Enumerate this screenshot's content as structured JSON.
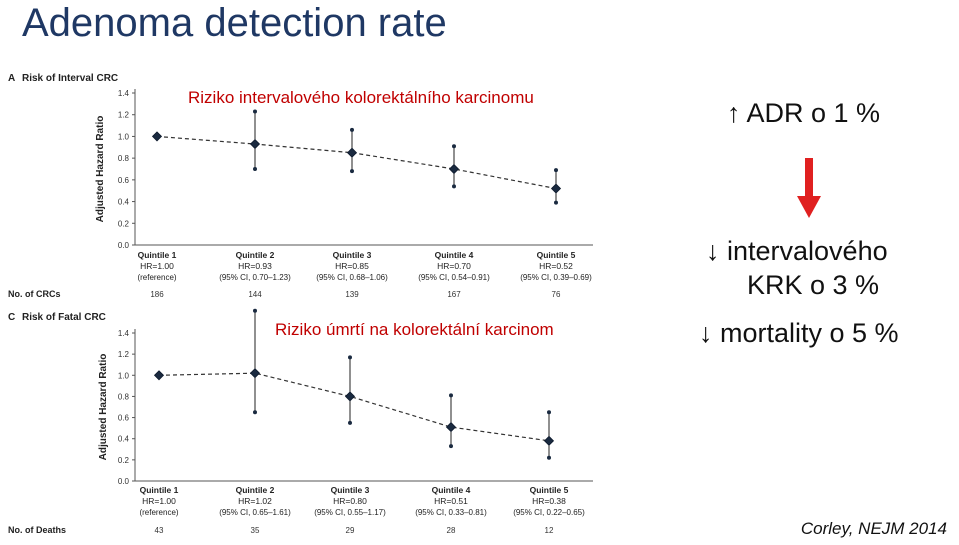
{
  "title": "Adenoma detection rate",
  "side": {
    "adr": "↑ ADR o 1 %",
    "krk_line1": "↓ intervalového",
    "krk_line2": "KRK o 3 %",
    "mortality": "↓ mortality o 5 %",
    "citation": "Corley, NEJM 2014",
    "arrow_color": "#e02020"
  },
  "chart_data": [
    {
      "type": "scatter",
      "panel": "A",
      "panel_title": "Risk of Interval CRC",
      "overlay_title": "Riziko intervalového kolorektálního karcinomu",
      "ylabel": "Adjusted Hazard Ratio",
      "ylim": [
        0,
        1.4
      ],
      "yticks": [
        "0.0",
        "0.2",
        "0.4",
        "0.6",
        "0.8",
        "1.0",
        "1.2",
        "1.4"
      ],
      "categories": [
        "Quintile 1",
        "Quintile 2",
        "Quintile 3",
        "Quintile 4",
        "Quintile 5"
      ],
      "hr_labels": [
        "HR=1.00",
        "HR=0.93",
        "HR=0.85",
        "HR=0.70",
        "HR=0.52"
      ],
      "ci_labels": [
        "(reference)",
        "(95% CI, 0.70–1.23)",
        "(95% CI, 0.68–1.06)",
        "(95% CI, 0.54–0.91)",
        "(95% CI, 0.39–0.69)"
      ],
      "values": [
        1.0,
        0.93,
        0.85,
        0.7,
        0.52
      ],
      "ci": [
        null,
        [
          0.7,
          1.23
        ],
        [
          0.68,
          1.06
        ],
        [
          0.54,
          0.91
        ],
        [
          0.39,
          0.69
        ]
      ],
      "count_label": "No. of CRCs",
      "counts": [
        "186",
        "144",
        "139",
        "167",
        "76"
      ]
    },
    {
      "type": "scatter",
      "panel": "C",
      "panel_title": "Risk of Fatal CRC",
      "overlay_title": "Riziko úmrtí na kolorektální karcinom",
      "ylabel": "Adjusted Hazard Ratio",
      "ylim": [
        0,
        1.4
      ],
      "yticks": [
        "0.0",
        "0.2",
        "0.4",
        "0.6",
        "0.8",
        "1.0",
        "1.2",
        "1.4"
      ],
      "categories": [
        "Quintile 1",
        "Quintile 2",
        "Quintile 3",
        "Quintile 4",
        "Quintile 5"
      ],
      "hr_labels": [
        "HR=1.00",
        "HR=1.02",
        "HR=0.80",
        "HR=0.51",
        "HR=0.38"
      ],
      "ci_labels": [
        "(reference)",
        "(95% CI, 0.65–1.61)",
        "(95% CI, 0.55–1.17)",
        "(95% CI, 0.33–0.81)",
        "(95% CI, 0.22–0.65)"
      ],
      "values": [
        1.0,
        1.02,
        0.8,
        0.51,
        0.38
      ],
      "ci": [
        null,
        [
          0.65,
          1.61
        ],
        [
          0.55,
          1.17
        ],
        [
          0.33,
          0.81
        ],
        [
          0.22,
          0.65
        ]
      ],
      "count_label": "No. of Deaths",
      "counts": [
        "43",
        "35",
        "29",
        "28",
        "12"
      ]
    }
  ]
}
